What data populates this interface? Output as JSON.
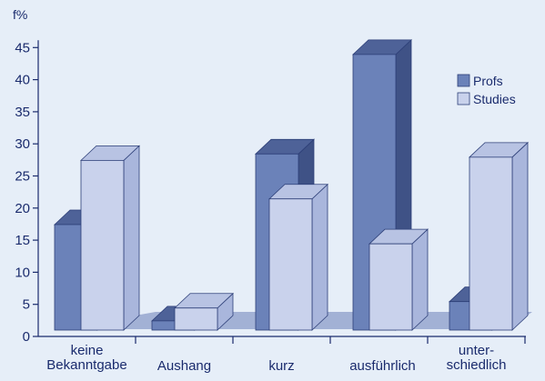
{
  "chart_data": {
    "type": "bar",
    "ylabel": "f%",
    "ylim": [
      0,
      45
    ],
    "yticks": [
      0,
      5,
      10,
      15,
      20,
      25,
      30,
      35,
      40,
      45
    ],
    "categories": [
      [
        "keine",
        "Bekanntgabe"
      ],
      [
        "Aushang"
      ],
      [
        "kurz"
      ],
      [
        "ausführlich"
      ],
      [
        "unter-",
        "schiedlich"
      ]
    ],
    "series": [
      {
        "name": "Profs",
        "values": [
          17,
          2,
          28,
          43.5,
          5
        ]
      },
      {
        "name": "Studies",
        "values": [
          27,
          4,
          21,
          14,
          27.5
        ]
      }
    ],
    "legend_position": "top-right",
    "grid": false,
    "colors": {
      "background": "#e6eef8",
      "axis": "#1a2b6d",
      "text": "#1a2b6d",
      "floor": "#a2b1d5",
      "profs_front": "#6b82b9",
      "profs_top": "#4e6298",
      "profs_side": "#3f5286",
      "studies_front": "#c9d2ec",
      "studies_top": "#b8c3e3",
      "studies_side": "#a9b6dc",
      "edge": "#2d3f78"
    }
  }
}
